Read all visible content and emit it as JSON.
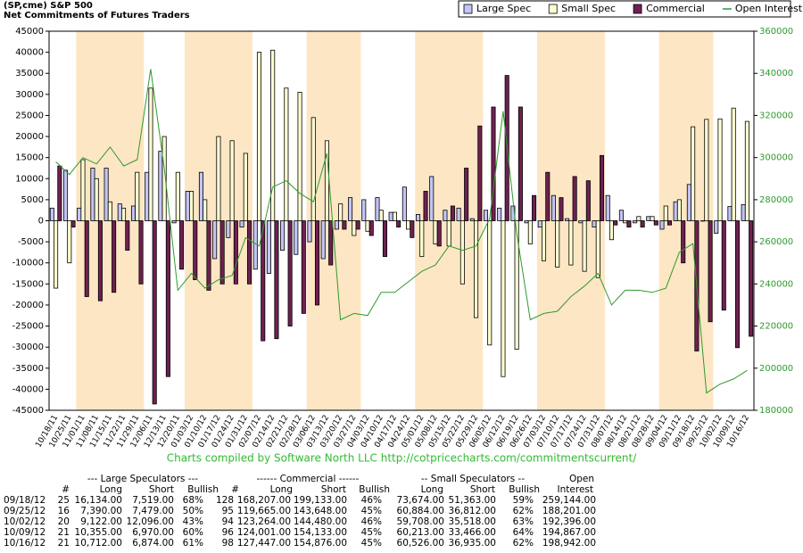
{
  "chart_data": {
    "type": "bar",
    "title": "(SP,cme) S&P 500",
    "subtitle": "Net Commitments of Futures Traders",
    "credit": "Charts compiled by Software North LLC  http://cotpricecharts.com/commitmentscurrent/",
    "categories": [
      "10/18/11",
      "10/25/11",
      "11/01/11",
      "11/08/11",
      "11/15/11",
      "11/22/11",
      "11/29/11",
      "12/06/11",
      "12/13/11",
      "12/20/11",
      "01/03/12",
      "01/10/12",
      "01/17/12",
      "01/24/12",
      "01/31/12",
      "02/07/12",
      "02/14/12",
      "02/21/12",
      "02/28/12",
      "03/06/12",
      "03/13/12",
      "03/20/12",
      "03/27/12",
      "04/03/12",
      "04/10/12",
      "04/17/12",
      "04/24/12",
      "05/01/12",
      "05/08/12",
      "05/15/12",
      "05/22/12",
      "05/29/12",
      "06/05/12",
      "06/12/12",
      "06/19/12",
      "06/26/12",
      "07/03/12",
      "07/10/12",
      "07/17/12",
      "07/24/12",
      "07/31/12",
      "08/07/12",
      "08/14/12",
      "08/21/12",
      "08/28/12",
      "09/04/12",
      "09/11/12",
      "09/18/12",
      "09/25/12",
      "10/02/12",
      "10/09/12",
      "10/16/12"
    ],
    "series": [
      {
        "name": "Large Spec",
        "color": "#c4c4f6",
        "values": [
          3000,
          12000,
          3000,
          12500,
          12500,
          4000,
          3500,
          11500,
          16500,
          -500,
          7000,
          11500,
          -9000,
          -4000,
          -1500,
          -11500,
          -12500,
          -7000,
          -8000,
          -5000,
          -9000,
          -2000,
          5500,
          5000,
          5500,
          2000,
          8000,
          1500,
          10500,
          2500,
          3000,
          500,
          2500,
          3000,
          3500,
          -500,
          -1500,
          6000,
          500,
          -500,
          -1500,
          6000,
          2500,
          -500,
          1000,
          -2000,
          4500,
          8615,
          -89,
          -2974,
          3385,
          3838
        ]
      },
      {
        "name": "Small Spec",
        "color": "#ffffd2",
        "values": [
          -16000,
          -10000,
          14500,
          10000,
          4500,
          3000,
          11500,
          31500,
          20000,
          11500,
          7000,
          5000,
          20000,
          19000,
          16000,
          40000,
          40500,
          31500,
          30500,
          24500,
          19000,
          4000,
          -3500,
          -2500,
          2500,
          2000,
          -2000,
          -8500,
          -5500,
          -6000,
          -15000,
          -23000,
          -29500,
          -37000,
          -30500,
          -5500,
          -9500,
          -11000,
          -10500,
          -12000,
          -13500,
          -4500,
          -500,
          1000,
          1000,
          3500,
          5000,
          22311,
          24072,
          24190,
          26747,
          23591
        ]
      },
      {
        "name": "Commercial",
        "color": "#6e2150",
        "values": [
          13000,
          -1500,
          -18000,
          -19000,
          -17000,
          -7000,
          -15000,
          -43500,
          -37000,
          -11500,
          -14000,
          -16500,
          -15000,
          -15000,
          -15000,
          -28500,
          -28000,
          -25000,
          -22000,
          -20000,
          -10500,
          -2000,
          -2000,
          -3500,
          -8500,
          -1500,
          -4000,
          7000,
          -6000,
          3500,
          12500,
          22500,
          27000,
          34500,
          27000,
          6000,
          11500,
          5500,
          10500,
          9500,
          15500,
          -1000,
          -1500,
          -1500,
          -1000,
          -1000,
          -10000,
          -30926,
          -23983,
          -21216,
          -30132,
          -27429
        ]
      },
      {
        "name": "Open Interest",
        "color": "#2e9a2e",
        "axis": "y2",
        "values": [
          298000,
          292000,
          300000,
          297000,
          305000,
          296000,
          299000,
          342000,
          295000,
          237000,
          245000,
          238000,
          242000,
          244000,
          262000,
          258000,
          286000,
          289000,
          283000,
          279000,
          302000,
          223000,
          226000,
          225000,
          236000,
          236000,
          241000,
          246000,
          249000,
          258000,
          256000,
          258000,
          271000,
          322000,
          264000,
          223000,
          226000,
          227000,
          234000,
          239000,
          245000,
          230000,
          237000,
          237000,
          236000,
          238000,
          255000,
          259144,
          188201,
          192396,
          194867,
          198942
        ]
      }
    ],
    "ylim": [
      -45000,
      45000
    ],
    "yticks": [
      -45000,
      -40000,
      -35000,
      -30000,
      -25000,
      -20000,
      -15000,
      -10000,
      -5000,
      0,
      5000,
      10000,
      15000,
      20000,
      25000,
      30000,
      35000,
      40000,
      45000
    ],
    "y2lim": [
      180000,
      360000
    ],
    "y2ticks": [
      180000,
      200000,
      220000,
      240000,
      260000,
      280000,
      300000,
      320000,
      340000,
      360000
    ],
    "grid": false,
    "legend": "top-right"
  },
  "table": {
    "header_groups": [
      "--- Large Speculators ---",
      "------ Commercial ------",
      "-- Small Speculators --",
      "Open"
    ],
    "columns": [
      "#",
      "Long",
      "Short",
      "Bullish",
      "#",
      "Long",
      "Short",
      "Bullish",
      "Long",
      "Short",
      "Bullish",
      "Interest"
    ],
    "rows": [
      [
        "09/18/12",
        "25",
        "16,134.00",
        "7,519.00",
        "68%",
        "128",
        "168,207.00",
        "199,133.00",
        "46%",
        "73,674.00",
        "51,363.00",
        "59%",
        "259,144.00"
      ],
      [
        "09/25/12",
        "16",
        "7,390.00",
        "7,479.00",
        "50%",
        "95",
        "119,665.00",
        "143,648.00",
        "45%",
        "60,884.00",
        "36,812.00",
        "62%",
        "188,201.00"
      ],
      [
        "10/02/12",
        "20",
        "9,122.00",
        "12,096.00",
        "43%",
        "94",
        "123,264.00",
        "144,480.00",
        "46%",
        "59,708.00",
        "35,518.00",
        "63%",
        "192,396.00"
      ],
      [
        "10/09/12",
        "21",
        "10,355.00",
        "6,970.00",
        "60%",
        "96",
        "124,001.00",
        "154,133.00",
        "45%",
        "60,213.00",
        "33,466.00",
        "64%",
        "194,867.00"
      ],
      [
        "10/16/12",
        "21",
        "10,712.00",
        "6,874.00",
        "61%",
        "98",
        "127,447.00",
        "154,876.00",
        "45%",
        "60,526.00",
        "36,935.00",
        "62%",
        "198,942.00"
      ]
    ]
  }
}
